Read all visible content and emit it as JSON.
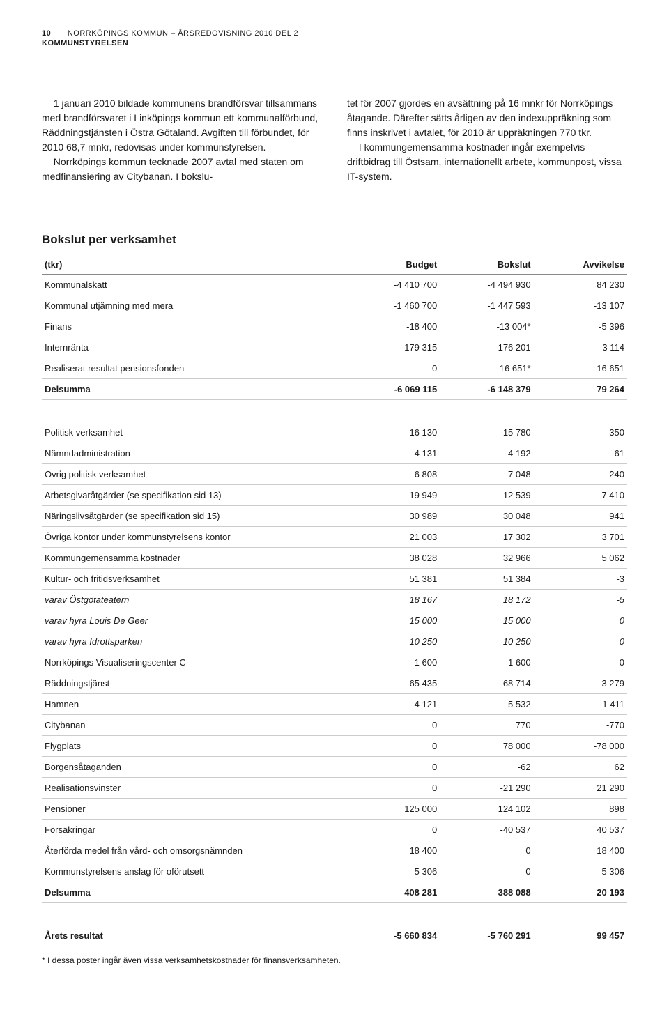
{
  "header": {
    "page_number": "10",
    "title": "NORRKÖPINGS KOMMUN – ÅRSREDOVISNING 2010 DEL 2",
    "section": "KOMMUNSTYRELSEN"
  },
  "body": {
    "col1": "1 januari 2010 bildade kommunens brandförsvar tillsammans med brandförsvaret i Linköpings kommun ett kommunalförbund, Räddningstjänsten i Östra Götaland. Avgiften till förbundet, för 2010 68,7 mnkr, redovisas under kommunstyrelsen.\nNorrköpings kommun tecknade 2007 avtal med staten om medfinansiering av Citybanan. I bokslu-",
    "col2": "tet för 2007 gjordes en avsättning på 16 mnkr för Norrköpings åtagande. Därefter sätts årligen av den indexuppräkning som finns inskrivet i avtalet, för 2010 är uppräkningen 770 tkr.\nI kommungemensamma kostnader ingår exempelvis driftbidrag till Östsam, internationellt arbete, kommunpost, vissa IT-system."
  },
  "table": {
    "title": "Bokslut per verksamhet",
    "columns": [
      "(tkr)",
      "Budget",
      "Bokslut",
      "Avvikelse"
    ],
    "section1": [
      {
        "label": "Kommunalskatt",
        "budget": "-4 410 700",
        "bokslut": "-4 494 930",
        "avvikelse": "84 230"
      },
      {
        "label": "Kommunal utjämning med mera",
        "budget": "-1 460 700",
        "bokslut": "-1 447 593",
        "avvikelse": "-13 107"
      },
      {
        "label": "Finans",
        "budget": "-18 400",
        "bokslut": "-13 004*",
        "avvikelse": "-5 396"
      },
      {
        "label": "Internränta",
        "budget": "-179 315",
        "bokslut": "-176 201",
        "avvikelse": "-3 114"
      },
      {
        "label": "Realiserat resultat pensionsfonden",
        "budget": "0",
        "bokslut": "-16 651*",
        "avvikelse": "16 651"
      }
    ],
    "subtotal1": {
      "label": "Delsumma",
      "budget": "-6 069 115",
      "bokslut": "-6 148 379",
      "avvikelse": "79 264"
    },
    "section2": [
      {
        "label": "Politisk verksamhet",
        "budget": "16 130",
        "bokslut": "15 780",
        "avvikelse": "350",
        "italic": false
      },
      {
        "label": "Nämndadministration",
        "budget": "4 131",
        "bokslut": "4 192",
        "avvikelse": "-61",
        "italic": false
      },
      {
        "label": "Övrig politisk verksamhet",
        "budget": "6 808",
        "bokslut": "7 048",
        "avvikelse": "-240",
        "italic": false
      },
      {
        "label": "Arbetsgivaråtgärder (se specifikation sid 13)",
        "budget": "19 949",
        "bokslut": "12 539",
        "avvikelse": "7 410",
        "italic": false
      },
      {
        "label": "Näringslivsåtgärder (se specifikation sid 15)",
        "budget": "30 989",
        "bokslut": "30 048",
        "avvikelse": "941",
        "italic": false
      },
      {
        "label": "Övriga kontor under kommunstyrelsens kontor",
        "budget": "21 003",
        "bokslut": "17 302",
        "avvikelse": "3 701",
        "italic": false
      },
      {
        "label": "Kommungemensamma kostnader",
        "budget": "38 028",
        "bokslut": "32 966",
        "avvikelse": "5 062",
        "italic": false
      },
      {
        "label": "Kultur- och fritidsverksamhet",
        "budget": "51 381",
        "bokslut": "51 384",
        "avvikelse": "-3",
        "italic": false
      },
      {
        "label": "varav Östgötateatern",
        "budget": "18 167",
        "bokslut": "18 172",
        "avvikelse": "-5",
        "italic": true
      },
      {
        "label": "varav hyra Louis De Geer",
        "budget": "15 000",
        "bokslut": "15 000",
        "avvikelse": "0",
        "italic": true
      },
      {
        "label": "varav hyra Idrottsparken",
        "budget": "10 250",
        "bokslut": "10 250",
        "avvikelse": "0",
        "italic": true
      },
      {
        "label": "Norrköpings Visualiseringscenter C",
        "budget": "1 600",
        "bokslut": "1 600",
        "avvikelse": "0",
        "italic": false
      },
      {
        "label": "Räddningstjänst",
        "budget": "65 435",
        "bokslut": "68 714",
        "avvikelse": "-3 279",
        "italic": false
      },
      {
        "label": "Hamnen",
        "budget": "4 121",
        "bokslut": "5 532",
        "avvikelse": "-1 411",
        "italic": false
      },
      {
        "label": "Citybanan",
        "budget": "0",
        "bokslut": "770",
        "avvikelse": "-770",
        "italic": false
      },
      {
        "label": "Flygplats",
        "budget": "0",
        "bokslut": "78 000",
        "avvikelse": "-78 000",
        "italic": false
      },
      {
        "label": "Borgensåtaganden",
        "budget": "0",
        "bokslut": "-62",
        "avvikelse": "62",
        "italic": false
      },
      {
        "label": "Realisationsvinster",
        "budget": "0",
        "bokslut": "-21 290",
        "avvikelse": "21 290",
        "italic": false
      },
      {
        "label": "Pensioner",
        "budget": "125 000",
        "bokslut": "124 102",
        "avvikelse": "898",
        "italic": false
      },
      {
        "label": "Försäkringar",
        "budget": "0",
        "bokslut": "-40 537",
        "avvikelse": "40 537",
        "italic": false
      },
      {
        "label": "Återförda medel från vård- och omsorgsnämnden",
        "budget": "18 400",
        "bokslut": "0",
        "avvikelse": "18 400",
        "italic": false
      },
      {
        "label": "Kommunstyrelsens anslag för oförutsett",
        "budget": "5 306",
        "bokslut": "0",
        "avvikelse": "5 306",
        "italic": false
      }
    ],
    "subtotal2": {
      "label": "Delsumma",
      "budget": "408 281",
      "bokslut": "388 088",
      "avvikelse": "20 193"
    },
    "total": {
      "label": "Årets resultat",
      "budget": "-5 660 834",
      "bokslut": "-5 760 291",
      "avvikelse": "99 457"
    },
    "footnote": "* I dessa poster ingår även vissa verksamhetskostnader för finansverksamheten."
  },
  "style": {
    "text_color": "#1a1a1a",
    "background_color": "#ffffff",
    "border_color": "#cccccc",
    "header_border_color": "#888888",
    "col_widths": [
      "52%",
      "16%",
      "16%",
      "16%"
    ]
  }
}
